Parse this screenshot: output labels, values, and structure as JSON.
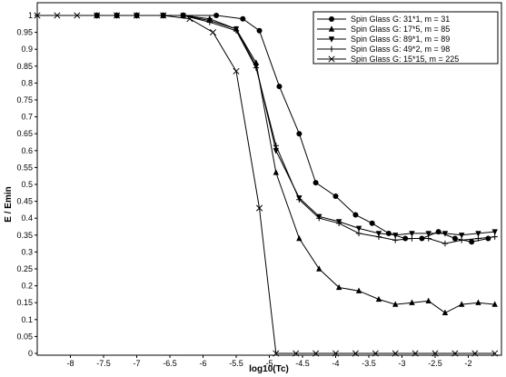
{
  "chart_data": {
    "type": "line",
    "xlabel": "log10(Tc)",
    "ylabel": "E / Emin",
    "xlim": [
      -8.5,
      -1.5
    ],
    "ylim": [
      0,
      1
    ],
    "x_ticks": [
      -8,
      -7.5,
      -7,
      -6.5,
      -6,
      -5.5,
      -5,
      -4.5,
      -4,
      -3.5,
      -3,
      -2.5,
      -2
    ],
    "x_tick_labels": [
      "-8",
      "-7.5",
      "-7",
      "-6.5",
      "-6",
      "-5.5",
      "-5",
      "-4.5",
      "-4",
      "-3.5",
      "-3",
      "-2.5",
      "-2"
    ],
    "y_ticks": [
      0,
      0.05,
      0.1,
      0.15,
      0.2,
      0.25,
      0.3,
      0.35,
      0.4,
      0.45,
      0.5,
      0.55,
      0.6,
      0.65,
      0.7,
      0.75,
      0.8,
      0.85,
      0.9,
      0.95,
      1
    ],
    "y_tick_labels": [
      "0",
      "0.05",
      "0.1",
      "0.15",
      "0.2",
      "0.25",
      "0.3",
      "0.35",
      "0.4",
      "0.45",
      "0.5",
      "0.55",
      "0.6",
      "0.65",
      "0.7",
      "0.75",
      "0.8",
      "0.85",
      "0.9",
      "0.95",
      "1"
    ],
    "grid": false,
    "legend_position": "top-right",
    "series": [
      {
        "name": "Spin Glass G: 31*1, m = 31",
        "marker": "circle",
        "x": [
          -7.6,
          -7.3,
          -7.0,
          -6.6,
          -6.3,
          -5.8,
          -5.4,
          -5.15,
          -4.85,
          -4.55,
          -4.3,
          -4.0,
          -3.7,
          -3.45,
          -3.2,
          -2.95,
          -2.7,
          -2.45,
          -2.2,
          -1.95,
          -1.7
        ],
        "y": [
          1,
          1,
          1,
          1,
          1,
          1,
          0.99,
          0.955,
          0.79,
          0.65,
          0.505,
          0.465,
          0.41,
          0.385,
          0.355,
          0.34,
          0.34,
          0.36,
          0.34,
          0.33,
          0.34
        ]
      },
      {
        "name": "Spin Glass G: 17*5, m = 85",
        "marker": "triangle",
        "x": [
          -7.6,
          -7.3,
          -7.0,
          -6.6,
          -6.3,
          -5.9,
          -5.5,
          -5.2,
          -4.9,
          -4.55,
          -4.25,
          -3.95,
          -3.65,
          -3.35,
          -3.1,
          -2.85,
          -2.6,
          -2.35,
          -2.1,
          -1.85,
          -1.6
        ],
        "y": [
          1,
          1,
          1,
          1,
          1,
          0.99,
          0.96,
          0.86,
          0.535,
          0.34,
          0.25,
          0.195,
          0.185,
          0.16,
          0.145,
          0.15,
          0.155,
          0.12,
          0.145,
          0.15,
          0.145
        ]
      },
      {
        "name": "Spin Glass G: 89*1, m = 89",
        "marker": "triangle-down",
        "x": [
          -7.6,
          -7.3,
          -7.0,
          -6.6,
          -6.3,
          -5.9,
          -5.5,
          -5.2,
          -4.9,
          -4.55,
          -4.25,
          -3.95,
          -3.65,
          -3.35,
          -3.1,
          -2.85,
          -2.6,
          -2.35,
          -2.1,
          -1.85,
          -1.6
        ],
        "y": [
          1,
          1,
          1,
          1,
          1,
          0.985,
          0.96,
          0.85,
          0.6,
          0.46,
          0.405,
          0.39,
          0.37,
          0.355,
          0.35,
          0.355,
          0.355,
          0.355,
          0.35,
          0.355,
          0.36
        ]
      },
      {
        "name": "Spin Glass G: 49*2, m = 98",
        "marker": "plus",
        "x": [
          -7.6,
          -7.3,
          -7.0,
          -6.6,
          -6.3,
          -5.9,
          -5.5,
          -5.2,
          -4.9,
          -4.55,
          -4.25,
          -3.95,
          -3.65,
          -3.35,
          -3.1,
          -2.85,
          -2.6,
          -2.35,
          -2.1,
          -1.85,
          -1.6
        ],
        "y": [
          1,
          1,
          1,
          1,
          1,
          0.98,
          0.955,
          0.845,
          0.615,
          0.455,
          0.4,
          0.385,
          0.355,
          0.345,
          0.335,
          0.34,
          0.34,
          0.325,
          0.335,
          0.34,
          0.345
        ]
      },
      {
        "name": "Spin Glass G: 15*15, m = 225",
        "marker": "x",
        "x": [
          -8.5,
          -8.2,
          -7.9,
          -7.6,
          -7.3,
          -7.0,
          -6.6,
          -6.2,
          -5.85,
          -5.5,
          -5.15,
          -4.9,
          -4.6,
          -4.3,
          -4.0,
          -3.7,
          -3.4,
          -3.1,
          -2.8,
          -2.5,
          -2.2,
          -1.9,
          -1.6
        ],
        "y": [
          1,
          1,
          1,
          1,
          1,
          1,
          1,
          0.99,
          0.95,
          0.835,
          0.43,
          0,
          0,
          0,
          0,
          0,
          0,
          0,
          0,
          0,
          0,
          0,
          0
        ]
      }
    ]
  }
}
